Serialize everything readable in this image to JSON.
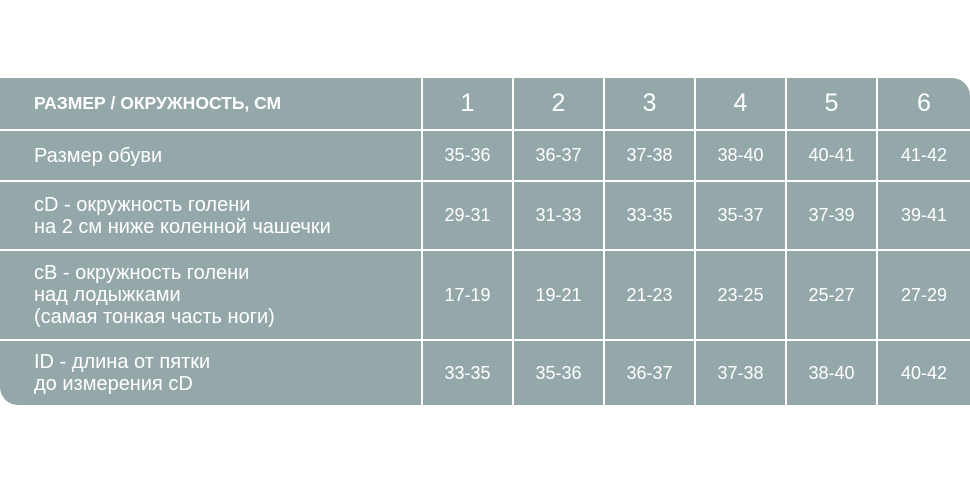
{
  "table": {
    "header": {
      "label": "РАЗМЕР / ОКРУЖНОСТЬ, СМ",
      "sizes": [
        "1",
        "2",
        "3",
        "4",
        "5",
        "6"
      ]
    },
    "rows": [
      {
        "label": "Размер обуви",
        "values": [
          "35-36",
          "36-37",
          "37-38",
          "38-40",
          "40-41",
          "41-42"
        ]
      },
      {
        "label": "cD - окружность  голени\nна 2 см ниже коленной чашечки",
        "values": [
          "29-31",
          "31-33",
          "33-35",
          "35-37",
          "37-39",
          "39-41"
        ]
      },
      {
        "label": "cB - окружность  голени\nнад лодыжками\n(самая тонкая часть ноги)",
        "values": [
          "17-19",
          "19-21",
          "21-23",
          "23-25",
          "25-27",
          "27-29"
        ]
      },
      {
        "label": "ID - длина от пятки\nдо измерения cD",
        "values": [
          "33-35",
          "35-36",
          "36-37",
          "37-38",
          "38-40",
          "40-42"
        ]
      }
    ],
    "colors": {
      "cell": "#94a8aa",
      "text": "#ffffff",
      "lines": "#ffffff"
    }
  }
}
